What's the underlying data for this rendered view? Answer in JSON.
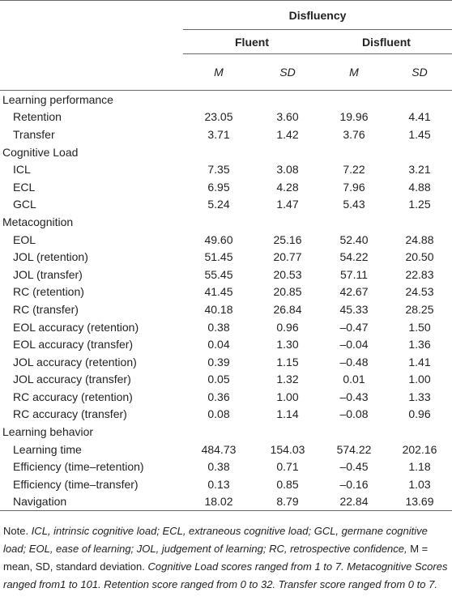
{
  "header": {
    "group": "Disfluency",
    "subgroups": [
      "Fluent",
      "Disfluent"
    ],
    "stats": [
      "M",
      "SD",
      "M",
      "SD"
    ]
  },
  "sections": [
    {
      "title": "Learning performance",
      "rows": [
        {
          "label": "Retention",
          "values": [
            "23.05",
            "3.60",
            "19.96",
            "4.41"
          ]
        },
        {
          "label": "Transfer",
          "values": [
            "3.71",
            "1.42",
            "3.76",
            "1.45"
          ]
        }
      ]
    },
    {
      "title": "Cognitive Load",
      "rows": [
        {
          "label": "ICL",
          "values": [
            "7.35",
            "3.08",
            "7.22",
            "3.21"
          ]
        },
        {
          "label": "ECL",
          "values": [
            "6.95",
            "4.28",
            "7.96",
            "4.88"
          ]
        },
        {
          "label": "GCL",
          "values": [
            "5.24",
            "1.47",
            "5.43",
            "1.25"
          ]
        }
      ]
    },
    {
      "title": "Metacognition",
      "rows": [
        {
          "label": "EOL",
          "values": [
            "49.60",
            "25.16",
            "52.40",
            "24.88"
          ]
        },
        {
          "label": "JOL (retention)",
          "values": [
            "51.45",
            "20.77",
            "54.22",
            "20.50"
          ]
        },
        {
          "label": "JOL (transfer)",
          "values": [
            "55.45",
            "20.53",
            "57.11",
            "22.83"
          ]
        },
        {
          "label": "RC (retention)",
          "values": [
            "41.45",
            "20.85",
            "42.67",
            "24.53"
          ]
        },
        {
          "label": "RC (transfer)",
          "values": [
            "40.18",
            "26.84",
            "45.33",
            "28.25"
          ]
        },
        {
          "label": "EOL accuracy (retention)",
          "values": [
            "0.38",
            "0.96",
            "–0.47",
            "1.50"
          ]
        },
        {
          "label": "EOL accuracy (transfer)",
          "values": [
            "0.04",
            "1.30",
            "–0.04",
            "1.36"
          ]
        },
        {
          "label": "JOL accuracy (retention)",
          "values": [
            "0.39",
            "1.15",
            "–0.48",
            "1.41"
          ]
        },
        {
          "label": "JOL accuracy (transfer)",
          "values": [
            "0.05",
            "1.32",
            "0.01",
            "1.00"
          ]
        },
        {
          "label": "RC accuracy (retention)",
          "values": [
            "0.36",
            "1.00",
            "–0.43",
            "1.33"
          ]
        },
        {
          "label": "RC accuracy (transfer)",
          "values": [
            "0.08",
            "1.14",
            "–0.08",
            "0.96"
          ]
        }
      ]
    },
    {
      "title": "Learning behavior",
      "rows": [
        {
          "label": "Learning time",
          "values": [
            "484.73",
            "154.03",
            "574.22",
            "202.16"
          ]
        },
        {
          "label": "Efficiency (time–retention)",
          "values": [
            "0.38",
            "0.71",
            "–0.45",
            "1.18"
          ]
        },
        {
          "label": "Efficiency (time–transfer)",
          "values": [
            "0.13",
            "0.85",
            "–0.16",
            "1.03"
          ]
        },
        {
          "label": "Navigation",
          "values": [
            "18.02",
            "8.79",
            "22.84",
            "13.69"
          ]
        }
      ]
    }
  ],
  "note": [
    {
      "text": "Note. ",
      "italic": false
    },
    {
      "text": "ICL, intrinsic cognitive load; ECL, extraneous cognitive load; GCL, germane cognitive load; EOL, ease of learning; JOL, judgement of learning; RC, retrospective confidence, ",
      "italic": true
    },
    {
      "text": "M = mean, SD, standard deviation. ",
      "italic": false
    },
    {
      "text": "Cognitive Load scores ranged from 1 to 7. Metacognitive Scores ranged from1 to 101. Retention score ranged from 0 to 32. Transfer score ranged from 0 to 7.",
      "italic": true
    }
  ]
}
